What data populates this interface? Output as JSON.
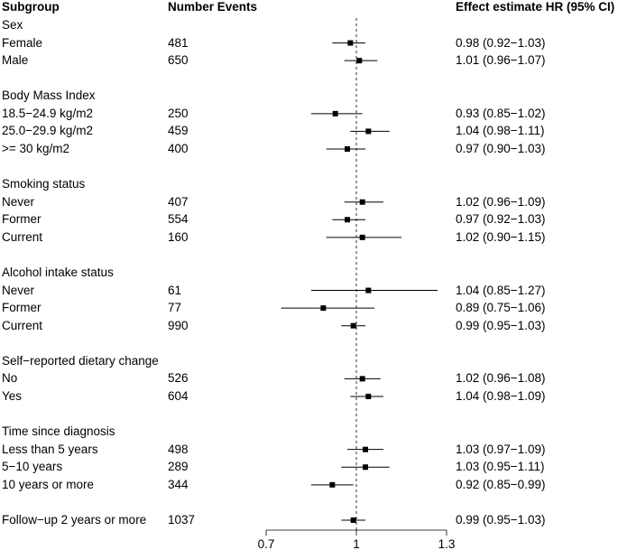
{
  "headers": {
    "subgroup": "Subgroup",
    "events": "Number Events",
    "effect": "Effect estimate HR (95% CI)"
  },
  "chart_data": {
    "type": "forest",
    "reference_line": 1,
    "xlim": [
      0.7,
      1.3
    ],
    "xticks": [
      "0.7",
      "1",
      "1.3"
    ],
    "rows": [
      {
        "kind": "group",
        "label": "Sex"
      },
      {
        "kind": "item",
        "label": "Female",
        "events": "481",
        "hr": 0.98,
        "lo": 0.92,
        "hi": 1.03,
        "text": "0.98 (0.92−1.03)"
      },
      {
        "kind": "item",
        "label": "Male",
        "events": "650",
        "hr": 1.01,
        "lo": 0.96,
        "hi": 1.07,
        "text": "1.01 (0.96−1.07)"
      },
      {
        "kind": "blank"
      },
      {
        "kind": "group",
        "label": "Body Mass Index"
      },
      {
        "kind": "item",
        "label": "18.5−24.9 kg/m2",
        "events": "250",
        "hr": 0.93,
        "lo": 0.85,
        "hi": 1.02,
        "text": "0.93 (0.85−1.02)"
      },
      {
        "kind": "item",
        "label": "25.0−29.9 kg/m2",
        "events": "459",
        "hr": 1.04,
        "lo": 0.98,
        "hi": 1.11,
        "text": "1.04 (0.98−1.11)"
      },
      {
        "kind": "item",
        "label": ">= 30 kg/m2",
        "events": "400",
        "hr": 0.97,
        "lo": 0.9,
        "hi": 1.03,
        "text": "0.97 (0.90−1.03)"
      },
      {
        "kind": "blank"
      },
      {
        "kind": "group",
        "label": "Smoking status"
      },
      {
        "kind": "item",
        "label": "Never",
        "events": "407",
        "hr": 1.02,
        "lo": 0.96,
        "hi": 1.09,
        "text": "1.02 (0.96−1.09)"
      },
      {
        "kind": "item",
        "label": "Former",
        "events": "554",
        "hr": 0.97,
        "lo": 0.92,
        "hi": 1.03,
        "text": "0.97 (0.92−1.03)"
      },
      {
        "kind": "item",
        "label": "Current",
        "events": "160",
        "hr": 1.02,
        "lo": 0.9,
        "hi": 1.15,
        "text": "1.02 (0.90−1.15)"
      },
      {
        "kind": "blank"
      },
      {
        "kind": "group",
        "label": "Alcohol intake status"
      },
      {
        "kind": "item",
        "label": "Never",
        "events": "61",
        "hr": 1.04,
        "lo": 0.85,
        "hi": 1.27,
        "text": "1.04 (0.85−1.27)"
      },
      {
        "kind": "item",
        "label": "Former",
        "events": "77",
        "hr": 0.89,
        "lo": 0.75,
        "hi": 1.06,
        "text": "0.89 (0.75−1.06)"
      },
      {
        "kind": "item",
        "label": "Current",
        "events": "990",
        "hr": 0.99,
        "lo": 0.95,
        "hi": 1.03,
        "text": "0.99 (0.95−1.03)"
      },
      {
        "kind": "blank"
      },
      {
        "kind": "group",
        "label": "Self−reported dietary change"
      },
      {
        "kind": "item",
        "label": "No",
        "events": "526",
        "hr": 1.02,
        "lo": 0.96,
        "hi": 1.08,
        "text": "1.02 (0.96−1.08)"
      },
      {
        "kind": "item",
        "label": "Yes",
        "events": "604",
        "hr": 1.04,
        "lo": 0.98,
        "hi": 1.09,
        "text": "1.04 (0.98−1.09)"
      },
      {
        "kind": "blank"
      },
      {
        "kind": "group",
        "label": "Time since diagnosis"
      },
      {
        "kind": "item",
        "label": "Less than 5 years",
        "events": "498",
        "hr": 1.03,
        "lo": 0.97,
        "hi": 1.09,
        "text": "1.03 (0.97−1.09)"
      },
      {
        "kind": "item",
        "label": "5−10 years",
        "events": "289",
        "hr": 1.03,
        "lo": 0.95,
        "hi": 1.11,
        "text": "1.03 (0.95−1.11)"
      },
      {
        "kind": "item",
        "label": "10 years or more",
        "events": "344",
        "hr": 0.92,
        "lo": 0.85,
        "hi": 0.99,
        "text": "0.92 (0.85−0.99)"
      },
      {
        "kind": "blank"
      },
      {
        "kind": "item",
        "label": "Follow−up 2 years or more",
        "events": "1037",
        "hr": 0.99,
        "lo": 0.95,
        "hi": 1.03,
        "text": "0.99 (0.95−1.03)"
      }
    ]
  }
}
